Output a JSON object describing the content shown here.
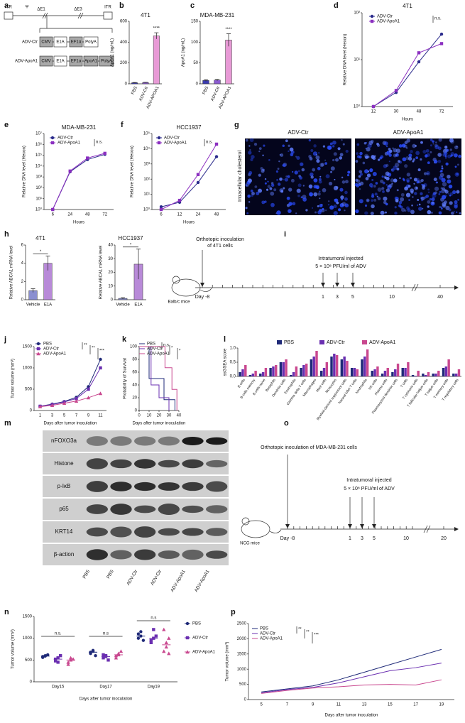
{
  "diagrams": [
    {
      "panel": "a",
      "labels": [
        "ITR",
        "Ψ",
        "ΔE1",
        "ΔE3",
        "ITR",
        "ADV-Ctr",
        "CMV",
        "E1A",
        "EF1α",
        "PolyA",
        "ADV-ApoA1",
        "CMV",
        "E1A",
        "EF1α",
        "ApoA1",
        "PolyA"
      ]
    },
    {
      "panel": "i",
      "labels": [
        "Orthotopic inoculation",
        "of 4T1 cells",
        "Intratumoral injected",
        "5 × 10⁸ PFU/ml of ADV",
        "Balb/c mice",
        "Day -8",
        "1",
        "3",
        "5",
        "10",
        "40"
      ]
    },
    {
      "panel": "o",
      "labels": [
        "Orthotopic inoculation of MDA-MB-231 cells",
        "Intratumoral injected",
        "5 × 10⁸ PFU/ml of ADV",
        "NCG mice",
        "Day -8",
        "1",
        "3",
        "5",
        "10",
        "20"
      ]
    }
  ],
  "images": [
    {
      "panel": "g",
      "labels": [
        "ADV-Ctr",
        "ADV-ApoA1"
      ],
      "ylabel": "Intracellular cholesterol"
    },
    {
      "panel": "m",
      "rows": [
        "nFOXO3a",
        "Histone",
        "p-IκB",
        "p65",
        "KRT14",
        "β-action"
      ],
      "lanes": [
        "PBS",
        "PBS",
        "ADV-Ctr",
        "ADV-Ctr",
        "ADV-ApoA1",
        "ADV-ApoA1"
      ]
    }
  ],
  "chart_data": [
    {
      "panel": "b",
      "type": "bar",
      "title": "4T1",
      "ylabel": "ApoA1 (ng/mL)",
      "categories": [
        "PBS",
        "ADV-Ctr",
        "ADV-APOA1"
      ],
      "values": [
        10,
        12,
        460
      ],
      "errors": [
        3,
        3,
        30
      ],
      "colors": [
        "#3b3bb0",
        "#8a5ad0",
        "#e89ad6"
      ],
      "ylim": [
        0,
        600
      ],
      "yticks": [
        0,
        200,
        400,
        600
      ],
      "annotations": [
        "****"
      ]
    },
    {
      "panel": "c",
      "type": "bar",
      "title": "MDA-MB-231",
      "ylabel": "ApoA1 (ng/mL)",
      "categories": [
        "PBS",
        "ADV-Ctr",
        "ADV-APOA1"
      ],
      "values": [
        8,
        9,
        105
      ],
      "errors": [
        2,
        2,
        15
      ],
      "colors": [
        "#3b3bb0",
        "#8a5ad0",
        "#e89ad6"
      ],
      "ylim": [
        0,
        150
      ],
      "yticks": [
        0,
        50,
        100,
        150
      ],
      "annotations": [
        "****"
      ]
    },
    {
      "panel": "d",
      "type": "line",
      "title": "4T1",
      "ylabel": "Relative DNA level (Hexon)",
      "xlabel": "Hours",
      "categories": [
        "12",
        "30",
        "48",
        "72"
      ],
      "ylog": true,
      "ylim": [
        1,
        100
      ],
      "yticks": [
        {
          "value": 1,
          "label": "10⁰"
        },
        {
          "value": 10,
          "label": "10¹"
        },
        {
          "value": 100,
          "label": "10²"
        }
      ],
      "series": [
        {
          "name": "ADV-Ctr",
          "color": "#2b2b8c",
          "marker": "circle",
          "values": [
            1,
            2,
            9,
            35
          ]
        },
        {
          "name": "ADV-ApoA1",
          "color": "#8b2fc0",
          "marker": "square",
          "values": [
            1,
            2.2,
            14,
            22
          ]
        }
      ],
      "annotations": [
        "n.s."
      ]
    },
    {
      "panel": "e",
      "type": "line",
      "title": "MDA-MB-231",
      "ylabel": "Relative DNA level (Hexon)",
      "xlabel": "Hours",
      "categories": [
        "6",
        "24",
        "48",
        "72"
      ],
      "ylog": true,
      "ylim": [
        1,
        10000000
      ],
      "yticks": [
        {
          "value": 1,
          "label": "10⁰"
        },
        {
          "value": 10,
          "label": "10¹"
        },
        {
          "value": 100,
          "label": "10²"
        },
        {
          "value": 1000,
          "label": "10³"
        },
        {
          "value": 10000,
          "label": "10⁴"
        },
        {
          "value": 100000,
          "label": "10⁵"
        },
        {
          "value": 1000000,
          "label": "10⁶"
        },
        {
          "value": 10000000,
          "label": "10⁷"
        }
      ],
      "series": [
        {
          "name": "ADV-Ctr",
          "color": "#2b2b8c",
          "marker": "circle",
          "values": [
            1,
            3000,
            40000,
            120000
          ]
        },
        {
          "name": "ADV-ApoA1",
          "color": "#8b2fc0",
          "marker": "square",
          "values": [
            1,
            3500,
            55000,
            150000
          ]
        }
      ],
      "annotations": [
        "n.s."
      ]
    },
    {
      "panel": "f",
      "type": "line",
      "title": "HCC1937",
      "ylabel": "Relative DNA level (Hexon)",
      "xlabel": "Hours",
      "categories": [
        "6",
        "12",
        "24",
        "48"
      ],
      "ylog": true,
      "ylim": [
        1,
        100000
      ],
      "yticks": [
        {
          "value": 1,
          "label": "10⁰"
        },
        {
          "value": 10,
          "label": "10¹"
        },
        {
          "value": 100,
          "label": "10²"
        },
        {
          "value": 1000,
          "label": "10³"
        },
        {
          "value": 10000,
          "label": "10⁴"
        },
        {
          "value": 100000,
          "label": "10⁵"
        }
      ],
      "series": [
        {
          "name": "ADV-Ctr",
          "color": "#2b2b8c",
          "marker": "circle",
          "values": [
            1.5,
            3,
            60,
            3000
          ]
        },
        {
          "name": "ADV-ApoA1",
          "color": "#8b2fc0",
          "marker": "square",
          "values": [
            1,
            4,
            200,
            20000
          ]
        }
      ],
      "annotations": [
        "n.s."
      ]
    },
    {
      "panel": "h",
      "type": "bar",
      "title": "4T1",
      "ylabel": "Relative ABCA1 mRNA level",
      "categories": [
        "Vehicle",
        "E1A"
      ],
      "values": [
        1,
        4
      ],
      "errors": [
        0.2,
        0.8
      ],
      "colors": [
        "#8a8fd0",
        "#b88ad8"
      ],
      "ylim": [
        0,
        6
      ],
      "yticks": [
        0,
        2,
        4,
        6
      ],
      "annotations": [
        "*"
      ]
    },
    {
      "type": "bar",
      "title": "HCC1937",
      "ylabel": "Relative ABCA1 mRNA level",
      "categories": [
        "Vehicle",
        "E1A"
      ],
      "values": [
        1,
        26
      ],
      "errors": [
        0.5,
        11
      ],
      "colors": [
        "#8a8fd0",
        "#b88ad8"
      ],
      "ylim": [
        0,
        40
      ],
      "yticks": [
        0,
        10,
        20,
        30,
        40
      ],
      "annotations": [
        "*"
      ]
    },
    {
      "panel": "j",
      "type": "line",
      "ylabel": "Tumor volume (mm³)",
      "xlabel": "Days after tumor inoculation",
      "categories": [
        "1",
        "3",
        "5",
        "7",
        "9",
        "11"
      ],
      "ylim": [
        0,
        1500
      ],
      "yticks": [
        0,
        500,
        1000,
        1500
      ],
      "series": [
        {
          "name": "PBS",
          "color": "#1f2a78",
          "marker": "circle",
          "values": [
            100,
            150,
            210,
            310,
            560,
            1200
          ]
        },
        {
          "name": "ADV-Ctr",
          "color": "#6a2fb0",
          "marker": "square",
          "values": [
            100,
            140,
            200,
            280,
            500,
            1000
          ]
        },
        {
          "name": "ADV-ApoA1",
          "color": "#c9488f",
          "marker": "triangle",
          "values": [
            90,
            120,
            170,
            220,
            300,
            400
          ]
        }
      ],
      "annotations": [
        "**",
        "**",
        "***"
      ]
    },
    {
      "panel": "k",
      "type": "line",
      "ylabel": "Probability of Survival",
      "xlabel": "Days after tumor inoculation",
      "xlim": [
        0,
        40
      ],
      "xticks": [
        0,
        10,
        20,
        30,
        40
      ],
      "ylim": [
        0,
        100
      ],
      "yticks": [
        0,
        20,
        40,
        60,
        80,
        100
      ],
      "series": [
        {
          "name": "PBS",
          "color": "#1f2a78",
          "x": [
            0,
            10,
            10,
            25,
            25,
            36,
            36
          ],
          "values": [
            100,
            100,
            50,
            50,
            17,
            17,
            0
          ]
        },
        {
          "name": "ADV-Ctr",
          "color": "#6a2fb0",
          "x": [
            0,
            12,
            12,
            20,
            20,
            30,
            30
          ],
          "values": [
            100,
            100,
            40,
            40,
            20,
            20,
            0
          ]
        },
        {
          "name": "ADV-ApoA1",
          "color": "#c9488f",
          "x": [
            0,
            26,
            26,
            33,
            33,
            38,
            38
          ],
          "values": [
            100,
            100,
            67,
            67,
            33,
            33,
            0
          ]
        }
      ],
      "annotations": [
        "n.s.",
        "*",
        "*"
      ]
    },
    {
      "panel": "l",
      "type": "bar",
      "ylabel": "ssGSEA score",
      "categories": [
        "B cells",
        "B cells memory",
        "B cells naive",
        "Basophils",
        "Dendritic cells",
        "Eosinophils",
        "Gamma delta T cells",
        "Macrophages",
        "Mast cells",
        "Monocytes",
        "Myeloid-derived suppressor cells",
        "Natural killer T cells",
        "Neutrophils",
        "NK cells",
        "Plasma cells",
        "Plasmacytoid dendritic cells",
        "T cells",
        "T cytotoxic cells",
        "T follicular helper cells",
        "T helper cells",
        "T memory cells",
        "T regulatory cells"
      ],
      "ylim": [
        0,
        1
      ],
      "yticks": [
        {
          "value": 0,
          "label": "0.0"
        },
        0.5,
        {
          "value": 1,
          "label": "1.0"
        }
      ],
      "series": [
        {
          "name": "PBS",
          "color": "#1f2a78",
          "values": [
            0.15,
            0.05,
            0.1,
            0.3,
            0.5,
            0.05,
            0.3,
            0.6,
            0.2,
            0.7,
            0.6,
            0.3,
            0.6,
            0.2,
            0.1,
            0.15,
            0.3,
            0.05,
            0.1,
            0.1,
            0.3,
            0.1
          ]
        },
        {
          "name": "ADV-Ctr",
          "color": "#6a2fb0",
          "values": [
            0.25,
            0.1,
            0.15,
            0.35,
            0.5,
            0.15,
            0.4,
            0.7,
            0.3,
            0.8,
            0.7,
            0.3,
            0.7,
            0.25,
            0.2,
            0.25,
            0.3,
            0.02,
            0.05,
            0.1,
            0.35,
            0.1
          ]
        },
        {
          "name": "ADV-ApoA1",
          "color": "#c9488f",
          "values": [
            0.4,
            0.2,
            0.3,
            0.4,
            0.6,
            0.35,
            0.45,
            0.9,
            0.5,
            0.75,
            0.55,
            0.25,
            0.95,
            0.35,
            0.3,
            0.45,
            0.5,
            0.2,
            0.15,
            0.2,
            0.6,
            0.25
          ]
        }
      ]
    },
    {
      "type": "dot",
      "ylabel": "Tumor volume (mm³)",
      "xlabel": "Days after tumor inoculation",
      "categories": [
        "Day15",
        "Day17",
        "Day19"
      ],
      "ylim": [
        0,
        1500
      ],
      "yticks": [
        0,
        500,
        1000,
        1500
      ],
      "series": [
        {
          "name": "PBS",
          "color": "#1f2a78",
          "marker": "circle",
          "values": [
            590,
            680,
            1050
          ],
          "points": [
            [
              560,
              600,
              620,
              580,
              590
            ],
            [
              650,
              700,
              600,
              680,
              720
            ],
            [
              1000,
              1050,
              950,
              1100,
              1150
            ]
          ]
        },
        {
          "name": "ADV-Ctr",
          "color": "#6a2fb0",
          "marker": "square",
          "values": [
            520,
            580,
            1000
          ],
          "points": [
            [
              480,
              550,
              600,
              520,
              450
            ],
            [
              550,
              600,
              500,
              620,
              580
            ],
            [
              900,
              1000,
              1050,
              950,
              1200
            ]
          ]
        },
        {
          "name": "ADV-ApoA1",
          "color": "#c9488f",
          "marker": "triangle",
          "values": [
            500,
            620,
            850
          ],
          "points": [
            [
              450,
              500,
              520,
              400,
              550
            ],
            [
              600,
              650,
              700,
              550,
              620
            ],
            [
              700,
              900,
              1000,
              1200,
              800,
              650
            ]
          ]
        }
      ],
      "annotations": [
        "n.s.",
        "n.s",
        "n.s"
      ]
    },
    {
      "panel": "p",
      "type": "line",
      "ylabel": "Tumor volume (mm³)",
      "xlabel": "Days after tumor inoculation",
      "categories": [
        "5",
        "7",
        "9",
        "11",
        "13",
        "15",
        "17",
        "19"
      ],
      "ylim": [
        0,
        2500
      ],
      "yticks": [
        0,
        500,
        1000,
        1500,
        2000,
        2500
      ],
      "series": [
        {
          "name": "PBS",
          "color": "#1f2a78",
          "values": [
            250,
            350,
            450,
            650,
            900,
            1150,
            1400,
            1650
          ]
        },
        {
          "name": "ADV-Ctr",
          "color": "#6a2fb0",
          "values": [
            220,
            330,
            400,
            550,
            750,
            950,
            1050,
            1200
          ]
        },
        {
          "name": "ADV-ApoA1",
          "color": "#c9488f",
          "values": [
            200,
            300,
            380,
            420,
            480,
            500,
            480,
            650
          ]
        }
      ],
      "annotations": [
        "**",
        "**",
        "***"
      ]
    }
  ],
  "panels_extra": {
    "n": "n"
  }
}
